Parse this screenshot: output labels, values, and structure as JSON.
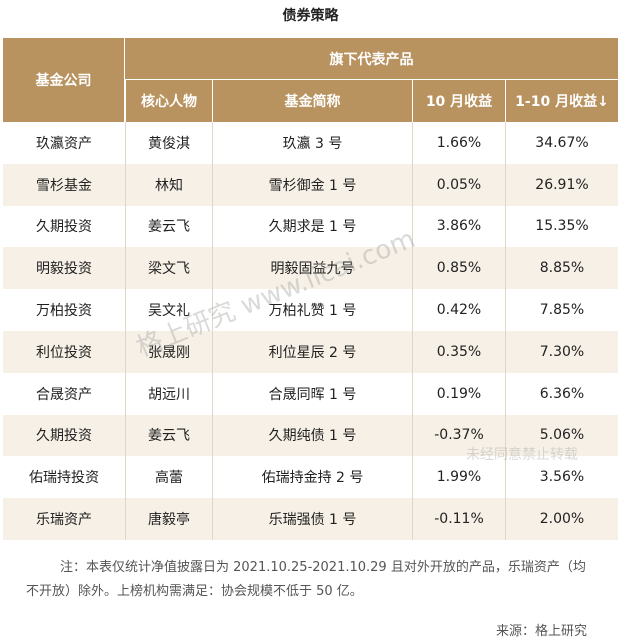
{
  "title": "债券策略",
  "table": {
    "header": {
      "company": "基金公司",
      "group": "旗下代表产品"
    },
    "subheader": [
      "核心人物",
      "基金简称",
      "10 月收益",
      "1-10 月收益↓"
    ],
    "rows": [
      [
        "玖瀛资产",
        "黄俊淇",
        "玖瀛 3 号",
        "1.66%",
        "34.67%"
      ],
      [
        "雪杉基金",
        "林知",
        "雪杉御金 1 号",
        "0.05%",
        "26.91%"
      ],
      [
        "久期投资",
        "姜云飞",
        "久期求是 1 号",
        "3.86%",
        "15.35%"
      ],
      [
        "明毅投资",
        "梁文飞",
        "明毅固益九号",
        "0.85%",
        "8.85%"
      ],
      [
        "万柏投资",
        "吴文礼",
        "万柏礼赞 1 号",
        "0.42%",
        "7.85%"
      ],
      [
        "利位投资",
        "张晟刚",
        "利位星辰 2 号",
        "0.35%",
        "7.30%"
      ],
      [
        "合晟资产",
        "胡远川",
        "合晟同晖 1 号",
        "0.19%",
        "6.36%"
      ],
      [
        "久期投资",
        "姜云飞",
        "久期纯债 1 号",
        "-0.37%",
        "5.06%"
      ],
      [
        "佑瑞持投资",
        "高蕾",
        "佑瑞持金持 2 号",
        "1.99%",
        "3.56%"
      ],
      [
        "乐瑞资产",
        "唐毅亭",
        "乐瑞强债 1 号",
        "-0.11%",
        "2.00%"
      ]
    ]
  },
  "note": [
    "注：本表仅统计净值披露日为 2021.10.25-2021.10.29 且对外开放的产品，乐瑞资产（均",
    "不开放）除外。上榜机构需满足：协会规模不低于 50 亿。"
  ],
  "source": "来源：格上研究",
  "watermark": [
    "格上研究 www.licai.com",
    "未经同意禁止转载"
  ]
}
